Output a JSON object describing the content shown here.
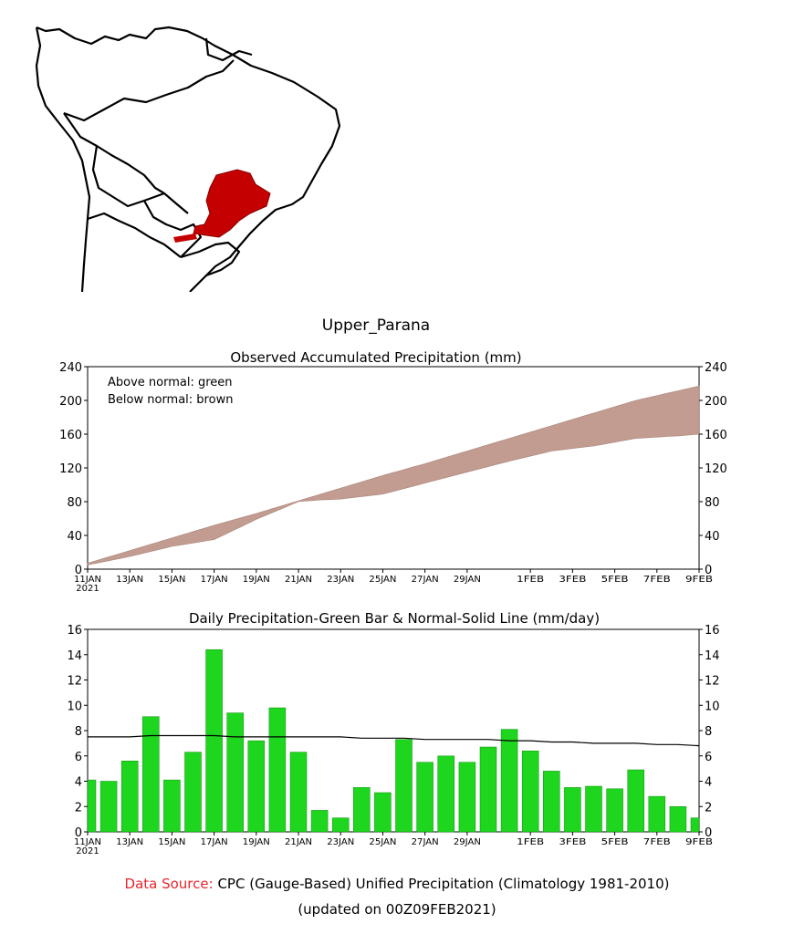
{
  "region_title": "Upper_Parana",
  "colors": {
    "region_fill": "#c40000",
    "deficit_fill": "#c29c90",
    "bar_fill": "#1ed61e",
    "bar_stroke": "#0b8f0b",
    "source_label": "#e8262b"
  },
  "footer": {
    "source_label": "Data Source:",
    "source_text": "CPC (Gauge-Based) Unified Precipitation (Climatology 1981-2010)",
    "updated": "(updated on 00Z09FEB2021)"
  },
  "chart_data": [
    {
      "type": "area",
      "title": "Observed Accumulated Precipitation (mm)",
      "legend": [
        "Above normal: green",
        "Below normal: brown"
      ],
      "xlabel": "",
      "ylabel": "",
      "ylim": [
        0,
        240
      ],
      "yticks": [
        0,
        40,
        80,
        120,
        160,
        200,
        240
      ],
      "x_tick_labels": [
        "11JAN",
        "13JAN",
        "15JAN",
        "17JAN",
        "19JAN",
        "21JAN",
        "23JAN",
        "25JAN",
        "27JAN",
        "29JAN",
        "1FEB",
        "3FEB",
        "5FEB",
        "7FEB",
        "9FEB"
      ],
      "x_tick_days": [
        0,
        2,
        4,
        6,
        8,
        10,
        12,
        14,
        16,
        18,
        21,
        23,
        25,
        27,
        29
      ],
      "year_label": "2021",
      "series": [
        {
          "name": "Normal accumulated",
          "days": [
            0,
            2,
            4,
            6,
            8,
            10,
            12,
            14,
            16,
            18,
            20,
            22,
            24,
            26,
            29
          ],
          "values": [
            7,
            22,
            37,
            52,
            66,
            81,
            96,
            111,
            125,
            140,
            155,
            170,
            185,
            200,
            217
          ]
        },
        {
          "name": "Observed accumulated",
          "days": [
            0,
            2,
            4,
            6,
            8,
            10,
            11,
            12,
            14,
            16,
            18,
            20,
            22,
            24,
            26,
            28,
            29
          ],
          "values": [
            5,
            15,
            27,
            35,
            59,
            80,
            82,
            83,
            89,
            102,
            115,
            128,
            140,
            146,
            155,
            158,
            160
          ]
        }
      ]
    },
    {
      "type": "bar",
      "title": "Daily Precipitation-Green Bar & Normal-Solid Line (mm/day)",
      "xlabel": "",
      "ylabel": "",
      "ylim": [
        0,
        16
      ],
      "yticks": [
        0,
        2,
        4,
        6,
        8,
        10,
        12,
        14,
        16
      ],
      "x_tick_labels": [
        "11JAN",
        "13JAN",
        "15JAN",
        "17JAN",
        "19JAN",
        "21JAN",
        "23JAN",
        "25JAN",
        "27JAN",
        "29JAN",
        "1FEB",
        "3FEB",
        "5FEB",
        "7FEB",
        "9FEB"
      ],
      "x_tick_days": [
        0,
        2,
        4,
        6,
        8,
        10,
        12,
        14,
        16,
        18,
        21,
        23,
        25,
        27,
        29
      ],
      "year_label": "2021",
      "series": [
        {
          "name": "Daily precipitation",
          "values": [
            4.1,
            4.0,
            5.6,
            9.1,
            4.1,
            6.3,
            14.4,
            9.4,
            7.2,
            9.8,
            6.3,
            1.7,
            1.1,
            3.5,
            3.1,
            7.3,
            5.5,
            6.0,
            5.5,
            6.7,
            8.1,
            6.4,
            4.8,
            3.5,
            3.6,
            3.4,
            4.9,
            2.8,
            2.0,
            1.1
          ]
        },
        {
          "name": "Normal",
          "values": [
            7.5,
            7.5,
            7.5,
            7.6,
            7.6,
            7.6,
            7.6,
            7.5,
            7.5,
            7.5,
            7.5,
            7.5,
            7.5,
            7.4,
            7.4,
            7.4,
            7.3,
            7.3,
            7.3,
            7.3,
            7.2,
            7.2,
            7.1,
            7.1,
            7.0,
            7.0,
            7.0,
            6.9,
            6.9,
            6.8
          ]
        }
      ]
    }
  ]
}
